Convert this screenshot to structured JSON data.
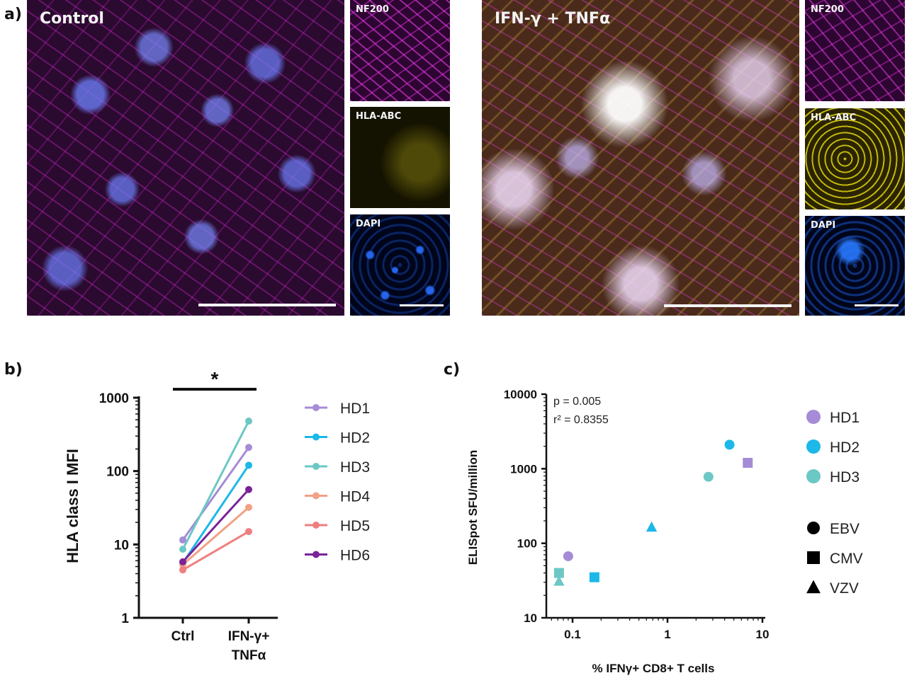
{
  "panel_a": {
    "letter": "a)",
    "control_title": "Control",
    "treated_title": "IFN-γ + TNFα",
    "channels": [
      "NF200",
      "HLA-ABC",
      "DAPI"
    ],
    "channel_colors": {
      "NF200": "#c020c0",
      "HLA-ABC": "#d6c400",
      "DAPI": "#1f6bff"
    }
  },
  "panel_b": {
    "letter": "b)",
    "significance": "*",
    "ylabel": "HLA class I MFI",
    "yticks": [
      "1",
      "10",
      "100",
      "1000"
    ],
    "xticks": [
      [
        "Ctrl"
      ],
      [
        "IFN-γ+",
        "TNFα"
      ]
    ],
    "legend": [
      "HD1",
      "HD2",
      "HD3",
      "HD4",
      "HD5",
      "HD6"
    ]
  },
  "panel_c": {
    "letter": "c)",
    "stat_p": "p = 0.005",
    "stat_r2": "r² = 0.8355",
    "ylabel": "ELISpot SFU/million",
    "xlabel": "% IFNγ+ CD8+ T cells",
    "yticks": [
      "10",
      "100",
      "1000",
      "10000"
    ],
    "xticks": [
      "0.1",
      "1",
      "10"
    ],
    "legend_donors": [
      "HD1",
      "HD2",
      "HD3"
    ],
    "legend_viruses": [
      "EBV",
      "CMV",
      "VZV"
    ]
  },
  "chart_data": [
    {
      "type": "line",
      "yscale": "log",
      "ylim": [
        1,
        1000
      ],
      "categories": [
        "Ctrl",
        "IFN-γ+ TNFα"
      ],
      "series": [
        {
          "name": "HD1",
          "color": "#a68bd6",
          "values": [
            11.5,
            210
          ]
        },
        {
          "name": "HD2",
          "color": "#1cb8e8",
          "values": [
            5.6,
            120
          ]
        },
        {
          "name": "HD3",
          "color": "#6cc8c4",
          "values": [
            8.6,
            480
          ]
        },
        {
          "name": "HD4",
          "color": "#f2a184",
          "values": [
            5.3,
            32
          ]
        },
        {
          "name": "HD5",
          "color": "#ee7f7f",
          "values": [
            4.5,
            15
          ]
        },
        {
          "name": "HD6",
          "color": "#7a2399",
          "values": [
            5.8,
            56
          ]
        }
      ]
    },
    {
      "type": "scatter",
      "xscale": "log",
      "yscale": "log",
      "xlim": [
        0.05,
        10
      ],
      "ylim": [
        10,
        10000
      ],
      "donor_colors": {
        "HD1": "#a68bd6",
        "HD2": "#1cb8e8",
        "HD3": "#6cc8c4"
      },
      "points": [
        {
          "donor": "HD1",
          "virus": "EBV",
          "x": 0.09,
          "y": 67
        },
        {
          "donor": "HD1",
          "virus": "CMV",
          "x": 7.0,
          "y": 1200
        },
        {
          "donor": "HD2",
          "virus": "EBV",
          "x": 4.5,
          "y": 2100
        },
        {
          "donor": "HD2",
          "virus": "CMV",
          "x": 0.17,
          "y": 35
        },
        {
          "donor": "HD2",
          "virus": "VZV",
          "x": 0.68,
          "y": 165
        },
        {
          "donor": "HD3",
          "virus": "EBV",
          "x": 2.7,
          "y": 780
        },
        {
          "donor": "HD3",
          "virus": "CMV",
          "x": 0.072,
          "y": 40
        },
        {
          "donor": "HD3",
          "virus": "VZV",
          "x": 0.072,
          "y": 31
        }
      ]
    }
  ]
}
